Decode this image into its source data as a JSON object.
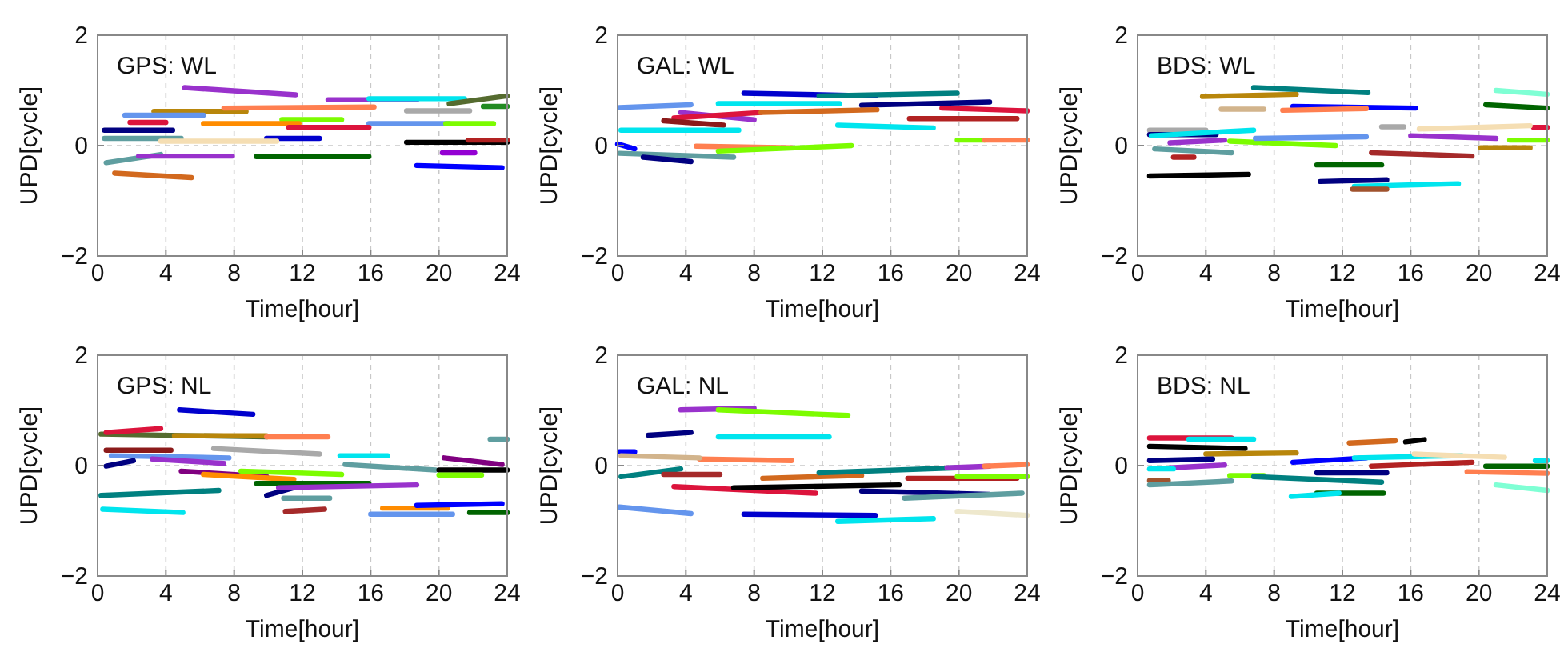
{
  "chart_data": [
    {
      "type": "line",
      "title": "GPS: WL",
      "xlabel": "Time[hour]",
      "ylabel": "UPD[cycle]",
      "xlim": [
        0,
        24
      ],
      "xticks": [
        0,
        4,
        8,
        12,
        16,
        20,
        24
      ],
      "ylim": [
        -2,
        2
      ],
      "yticks": [
        -2,
        0,
        2
      ],
      "grid": true,
      "series": [
        {
          "color": "#9932cc",
          "x": [
            5.1,
            11.6
          ],
          "values": [
            1.05,
            0.92
          ]
        },
        {
          "color": "#b8860b",
          "x": [
            3.3,
            8.7
          ],
          "values": [
            0.62,
            0.62
          ]
        },
        {
          "color": "#ff7f50",
          "x": [
            7.4,
            16.2
          ],
          "values": [
            0.68,
            0.7
          ]
        },
        {
          "color": "#9932cc",
          "x": [
            13.5,
            18.7
          ],
          "values": [
            0.83,
            0.83
          ]
        },
        {
          "color": "#00e5ee",
          "x": [
            15.9,
            21.5
          ],
          "values": [
            0.85,
            0.85
          ]
        },
        {
          "color": "#556b2f",
          "x": [
            20.6,
            24
          ],
          "values": [
            0.76,
            0.9
          ]
        },
        {
          "color": "#a9a9a9",
          "x": [
            18.1,
            21.8
          ],
          "values": [
            0.63,
            0.63
          ]
        },
        {
          "color": "#228b22",
          "x": [
            22.6,
            24
          ],
          "values": [
            0.71,
            0.71
          ]
        },
        {
          "color": "#6495ed",
          "x": [
            1.6,
            6.2
          ],
          "values": [
            0.55,
            0.55
          ]
        },
        {
          "color": "#dc143c",
          "x": [
            1.9,
            4
          ],
          "values": [
            0.42,
            0.42
          ]
        },
        {
          "color": "#7cfc00",
          "x": [
            10.8,
            14.3
          ],
          "values": [
            0.47,
            0.47
          ]
        },
        {
          "color": "#ff8c00",
          "x": [
            6.2,
            11.8
          ],
          "values": [
            0.4,
            0.4
          ]
        },
        {
          "color": "#6495ed",
          "x": [
            15.9,
            20.6
          ],
          "values": [
            0.4,
            0.4
          ]
        },
        {
          "color": "#7cfc00",
          "x": [
            20.4,
            23.2
          ],
          "values": [
            0.4,
            0.4
          ]
        },
        {
          "color": "#000080",
          "x": [
            0.4,
            4.4
          ],
          "values": [
            0.28,
            0.28
          ]
        },
        {
          "color": "#dc143c",
          "x": [
            11.2,
            15.9
          ],
          "values": [
            0.33,
            0.33
          ]
        },
        {
          "color": "#5f9ea0",
          "x": [
            0.4,
            4.9
          ],
          "values": [
            0.13,
            0.13
          ]
        },
        {
          "color": "#0000cd",
          "x": [
            9.9,
            13
          ],
          "values": [
            0.13,
            0.13
          ]
        },
        {
          "color": "#f5deb3",
          "x": [
            3.7,
            10.5
          ],
          "values": [
            0.08,
            0.08
          ]
        },
        {
          "color": "#000000",
          "x": [
            18.1,
            24
          ],
          "values": [
            0.06,
            0.06
          ]
        },
        {
          "color": "#b22222",
          "x": [
            21.7,
            24
          ],
          "values": [
            0.1,
            0.1
          ]
        },
        {
          "color": "#5f9ea0",
          "x": [
            0.5,
            3.7
          ],
          "values": [
            -0.31,
            -0.16
          ]
        },
        {
          "color": "#9932cc",
          "x": [
            2.4,
            7.9
          ],
          "values": [
            -0.19,
            -0.19
          ]
        },
        {
          "color": "#006400",
          "x": [
            9.3,
            15.9
          ],
          "values": [
            -0.2,
            -0.2
          ]
        },
        {
          "color": "#d2691e",
          "x": [
            1,
            5.5
          ],
          "values": [
            -0.5,
            -0.58
          ]
        },
        {
          "color": "#0000ff",
          "x": [
            18.7,
            23.7
          ],
          "values": [
            -0.36,
            -0.4
          ]
        },
        {
          "color": "#9400d3",
          "x": [
            20.2,
            22.1
          ],
          "values": [
            -0.13,
            -0.13
          ]
        }
      ]
    },
    {
      "type": "line",
      "title": "GAL: WL",
      "xlabel": "Time[hour]",
      "ylabel": "UPD[cycle]",
      "xlim": [
        0,
        24
      ],
      "xticks": [
        0,
        4,
        8,
        12,
        16,
        20,
        24
      ],
      "ylim": [
        -2,
        2
      ],
      "yticks": [
        -2,
        0,
        2
      ],
      "grid": true,
      "series": [
        {
          "color": "#0000cd",
          "x": [
            7.4,
            15.1
          ],
          "values": [
            0.95,
            0.9
          ]
        },
        {
          "color": "#008080",
          "x": [
            11.8,
            19.9
          ],
          "values": [
            0.9,
            0.95
          ]
        },
        {
          "color": "#6495ed",
          "x": [
            0.1,
            4.3
          ],
          "values": [
            0.69,
            0.74
          ]
        },
        {
          "color": "#00e5ee",
          "x": [
            5.9,
            13
          ],
          "values": [
            0.76,
            0.76
          ]
        },
        {
          "color": "#000080",
          "x": [
            14.3,
            21.8
          ],
          "values": [
            0.73,
            0.79
          ]
        },
        {
          "color": "#9932cc",
          "x": [
            3.7,
            8
          ],
          "values": [
            0.6,
            0.47
          ]
        },
        {
          "color": "#dc143c",
          "x": [
            3.3,
            8.4
          ],
          "values": [
            0.5,
            0.6
          ]
        },
        {
          "color": "#d2691e",
          "x": [
            8.4,
            15.2
          ],
          "values": [
            0.6,
            0.65
          ]
        },
        {
          "color": "#b22222",
          "x": [
            17.1,
            23.4
          ],
          "values": [
            0.49,
            0.49
          ]
        },
        {
          "color": "#8b1a1a",
          "x": [
            2.7,
            6.2
          ],
          "values": [
            0.45,
            0.37
          ]
        },
        {
          "color": "#dc143c",
          "x": [
            19,
            24
          ],
          "values": [
            0.68,
            0.63
          ]
        },
        {
          "color": "#00e5ee",
          "x": [
            0.2,
            7.1
          ],
          "values": [
            0.28,
            0.28
          ]
        },
        {
          "color": "#00e5ee",
          "x": [
            12.9,
            18.5
          ],
          "values": [
            0.37,
            0.32
          ]
        },
        {
          "color": "#ff7f50",
          "x": [
            4.6,
            10.2
          ],
          "values": [
            -0.01,
            -0.04
          ]
        },
        {
          "color": "#7cfc00",
          "x": [
            5.9,
            13.7
          ],
          "values": [
            -0.1,
            0
          ]
        },
        {
          "color": "#7cfc00",
          "x": [
            19.9,
            21.5
          ],
          "values": [
            0.1,
            0.1
          ]
        },
        {
          "color": "#ff7f50",
          "x": [
            21.5,
            24
          ],
          "values": [
            0.1,
            0.1
          ]
        },
        {
          "color": "#0000ff",
          "x": [
            0,
            1
          ],
          "values": [
            0.03,
            -0.06
          ]
        },
        {
          "color": "#5f9ea0",
          "x": [
            0.1,
            6.8
          ],
          "values": [
            -0.14,
            -0.21
          ]
        },
        {
          "color": "#000080",
          "x": [
            1.5,
            4.3
          ],
          "values": [
            -0.21,
            -0.29
          ]
        }
      ]
    },
    {
      "type": "line",
      "title": "BDS: WL",
      "xlabel": "Time[hour]",
      "ylabel": "UPD[cycle]",
      "xlim": [
        0,
        24
      ],
      "xticks": [
        0,
        4,
        8,
        12,
        16,
        20,
        24
      ],
      "ylim": [
        -2,
        2
      ],
      "yticks": [
        -2,
        0,
        2
      ],
      "grid": true,
      "series": [
        {
          "color": "#008080",
          "x": [
            6.8,
            13.5
          ],
          "values": [
            1.05,
            0.96
          ]
        },
        {
          "color": "#b8860b",
          "x": [
            3.8,
            9.3
          ],
          "values": [
            0.89,
            0.93
          ]
        },
        {
          "color": "#d2b48c",
          "x": [
            4.9,
            7.4
          ],
          "values": [
            0.66,
            0.66
          ]
        },
        {
          "color": "#0000ff",
          "x": [
            9.1,
            16.3
          ],
          "values": [
            0.71,
            0.68
          ]
        },
        {
          "color": "#ff7f50",
          "x": [
            8.5,
            13.4
          ],
          "values": [
            0.64,
            0.67
          ]
        },
        {
          "color": "#7fffd4",
          "x": [
            21,
            24
          ],
          "values": [
            1,
            0.93
          ]
        },
        {
          "color": "#006400",
          "x": [
            20.4,
            24
          ],
          "values": [
            0.74,
            0.68
          ]
        },
        {
          "color": "#a9a9a9",
          "x": [
            0.7,
            4
          ],
          "values": [
            0.28,
            0.28
          ]
        },
        {
          "color": "#000080",
          "x": [
            0.7,
            4.6
          ],
          "values": [
            0.2,
            0.2
          ]
        },
        {
          "color": "#00e5ee",
          "x": [
            0.8,
            6.8
          ],
          "values": [
            0.18,
            0.28
          ]
        },
        {
          "color": "#9932cc",
          "x": [
            1.9,
            5.1
          ],
          "values": [
            0.05,
            0.1
          ]
        },
        {
          "color": "#7cfc00",
          "x": [
            5.4,
            11.6
          ],
          "values": [
            0.08,
            0
          ]
        },
        {
          "color": "#6495ed",
          "x": [
            6.9,
            13.4
          ],
          "values": [
            0.13,
            0.16
          ]
        },
        {
          "color": "#5f9ea0",
          "x": [
            1,
            5.5
          ],
          "values": [
            -0.06,
            -0.13
          ]
        },
        {
          "color": "#b22222",
          "x": [
            2.1,
            3.3
          ],
          "values": [
            -0.21,
            -0.21
          ]
        },
        {
          "color": "#000000",
          "x": [
            0.7,
            6.5
          ],
          "values": [
            -0.55,
            -0.52
          ]
        },
        {
          "color": "#006400",
          "x": [
            10.5,
            14.3
          ],
          "values": [
            -0.35,
            -0.35
          ]
        },
        {
          "color": "#000080",
          "x": [
            10.7,
            14.6
          ],
          "values": [
            -0.65,
            -0.62
          ]
        },
        {
          "color": "#00e5ee",
          "x": [
            12.7,
            18.8
          ],
          "values": [
            -0.74,
            -0.69
          ]
        },
        {
          "color": "#a0522d",
          "x": [
            12.6,
            14.6
          ],
          "values": [
            -0.79,
            -0.79
          ]
        },
        {
          "color": "#a9a9a9",
          "x": [
            14.3,
            15.6
          ],
          "values": [
            0.34,
            0.34
          ]
        },
        {
          "color": "#9932cc",
          "x": [
            16,
            21
          ],
          "values": [
            0.18,
            0.13
          ]
        },
        {
          "color": "#a52a2a",
          "x": [
            13.7,
            19.6
          ],
          "values": [
            -0.13,
            -0.19
          ]
        },
        {
          "color": "#b8860b",
          "x": [
            20.1,
            23
          ],
          "values": [
            -0.04,
            -0.04
          ]
        },
        {
          "color": "#dc143c",
          "x": [
            23.2,
            24
          ],
          "values": [
            0.33,
            0.33
          ]
        },
        {
          "color": "#7cfc00",
          "x": [
            21.8,
            24
          ],
          "values": [
            0.1,
            0.1
          ]
        },
        {
          "color": "#f5deb3",
          "x": [
            16.5,
            23
          ],
          "values": [
            0.3,
            0.36
          ]
        }
      ]
    },
    {
      "type": "line",
      "title": "GPS: NL",
      "xlabel": "Time[hour]",
      "ylabel": "UPD[cycle]",
      "xlim": [
        0,
        24
      ],
      "xticks": [
        0,
        4,
        8,
        12,
        16,
        20,
        24
      ],
      "ylim": [
        -2,
        2
      ],
      "yticks": [
        -2,
        0,
        2
      ],
      "grid": true,
      "series": [
        {
          "color": "#0000cd",
          "x": [
            4.8,
            9.1
          ],
          "values": [
            1.01,
            0.93
          ]
        },
        {
          "color": "#556b2f",
          "x": [
            0.2,
            9.9
          ],
          "values": [
            0.57,
            0.52
          ]
        },
        {
          "color": "#b8860b",
          "x": [
            4.5,
            9.9
          ],
          "values": [
            0.54,
            0.54
          ]
        },
        {
          "color": "#ff7f50",
          "x": [
            9.9,
            13.5
          ],
          "values": [
            0.52,
            0.52
          ]
        },
        {
          "color": "#dc143c",
          "x": [
            0.5,
            3.7
          ],
          "values": [
            0.6,
            0.67
          ]
        },
        {
          "color": "#8b1a1a",
          "x": [
            0.5,
            4.3
          ],
          "values": [
            0.28,
            0.28
          ]
        },
        {
          "color": "#a9a9a9",
          "x": [
            6.8,
            13
          ],
          "values": [
            0.31,
            0.21
          ]
        },
        {
          "color": "#6495ed",
          "x": [
            0.8,
            7.7
          ],
          "values": [
            0.18,
            0.14
          ]
        },
        {
          "color": "#000080",
          "x": [
            0.5,
            2.1
          ],
          "values": [
            -0.01,
            0.09
          ]
        },
        {
          "color": "#9932cc",
          "x": [
            3.2,
            7.4
          ],
          "values": [
            0.12,
            0.04
          ]
        },
        {
          "color": "#008080",
          "x": [
            0.2,
            7.1
          ],
          "values": [
            -0.54,
            -0.45
          ]
        },
        {
          "color": "#00e5ee",
          "x": [
            0.3,
            5
          ],
          "values": [
            -0.79,
            -0.85
          ]
        },
        {
          "color": "#800080",
          "x": [
            4.9,
            9.9
          ],
          "values": [
            -0.1,
            -0.2
          ]
        },
        {
          "color": "#ff8c00",
          "x": [
            6.2,
            11.5
          ],
          "values": [
            -0.16,
            -0.25
          ]
        },
        {
          "color": "#7cfc00",
          "x": [
            8.4,
            14.3
          ],
          "values": [
            -0.1,
            -0.16
          ]
        },
        {
          "color": "#006400",
          "x": [
            9.3,
            15.9
          ],
          "values": [
            -0.32,
            -0.32
          ]
        },
        {
          "color": "#000080",
          "x": [
            9.9,
            11.5
          ],
          "values": [
            -0.54,
            -0.4
          ]
        },
        {
          "color": "#9932cc",
          "x": [
            10.6,
            18.7
          ],
          "values": [
            -0.4,
            -0.35
          ]
        },
        {
          "color": "#a52a2a",
          "x": [
            11,
            13.3
          ],
          "values": [
            -0.83,
            -0.79
          ]
        },
        {
          "color": "#5f9ea0",
          "x": [
            10.9,
            13.6
          ],
          "values": [
            -0.59,
            -0.59
          ]
        },
        {
          "color": "#00e5ee",
          "x": [
            14.2,
            17
          ],
          "values": [
            0.18,
            0.18
          ]
        },
        {
          "color": "#5f9ea0",
          "x": [
            14.5,
            19.8
          ],
          "values": [
            0.02,
            -0.08
          ]
        },
        {
          "color": "#000000",
          "x": [
            20,
            24
          ],
          "values": [
            -0.08,
            -0.08
          ]
        },
        {
          "color": "#7cfc00",
          "x": [
            20,
            22.5
          ],
          "values": [
            -0.17,
            -0.17
          ]
        },
        {
          "color": "#800080",
          "x": [
            20.3,
            23.7
          ],
          "values": [
            0.14,
            0.02
          ]
        },
        {
          "color": "#6495ed",
          "x": [
            16,
            20.8
          ],
          "values": [
            -0.88,
            -0.88
          ]
        },
        {
          "color": "#ff8c00",
          "x": [
            16.7,
            20.5
          ],
          "values": [
            -0.77,
            -0.77
          ]
        },
        {
          "color": "#0000ff",
          "x": [
            18.7,
            23.7
          ],
          "values": [
            -0.72,
            -0.69
          ]
        },
        {
          "color": "#006400",
          "x": [
            21.8,
            24
          ],
          "values": [
            -0.85,
            -0.85
          ]
        },
        {
          "color": "#5f9ea0",
          "x": [
            23,
            24
          ],
          "values": [
            0.48,
            0.48
          ]
        }
      ]
    },
    {
      "type": "line",
      "title": "GAL: NL",
      "xlabel": "Time[hour]",
      "ylabel": "UPD[cycle]",
      "xlim": [
        0,
        24
      ],
      "xticks": [
        0,
        4,
        8,
        12,
        16,
        20,
        24
      ],
      "ylim": [
        -2,
        2
      ],
      "yticks": [
        -2,
        0,
        2
      ],
      "grid": true,
      "series": [
        {
          "color": "#9932cc",
          "x": [
            3.7,
            8
          ],
          "values": [
            1.01,
            1.04
          ]
        },
        {
          "color": "#7cfc00",
          "x": [
            5.9,
            13.5
          ],
          "values": [
            1.01,
            0.91
          ]
        },
        {
          "color": "#000080",
          "x": [
            1.8,
            4.3
          ],
          "values": [
            0.55,
            0.6
          ]
        },
        {
          "color": "#00e5ee",
          "x": [
            5.9,
            12.4
          ],
          "values": [
            0.52,
            0.52
          ]
        },
        {
          "color": "#0000ff",
          "x": [
            0.1,
            1
          ],
          "values": [
            0.25,
            0.25
          ]
        },
        {
          "color": "#ff7f50",
          "x": [
            4.8,
            10.2
          ],
          "values": [
            0.12,
            0.09
          ]
        },
        {
          "color": "#d2b48c",
          "x": [
            0.2,
            4.8
          ],
          "values": [
            0.18,
            0.14
          ]
        },
        {
          "color": "#008080",
          "x": [
            0.2,
            3.7
          ],
          "values": [
            -0.2,
            -0.06
          ]
        },
        {
          "color": "#a52a2a",
          "x": [
            2.7,
            6
          ],
          "values": [
            -0.16,
            -0.16
          ]
        },
        {
          "color": "#dc143c",
          "x": [
            3.3,
            11.6
          ],
          "values": [
            -0.38,
            -0.5
          ]
        },
        {
          "color": "#000000",
          "x": [
            6.8,
            16.5
          ],
          "values": [
            -0.4,
            -0.35
          ]
        },
        {
          "color": "#d2691e",
          "x": [
            8.5,
            14.3
          ],
          "values": [
            -0.23,
            -0.18
          ]
        },
        {
          "color": "#008080",
          "x": [
            11.8,
            19.9
          ],
          "values": [
            -0.13,
            -0.04
          ]
        },
        {
          "color": "#6495ed",
          "x": [
            0.1,
            4.3
          ],
          "values": [
            -0.75,
            -0.87
          ]
        },
        {
          "color": "#0000cd",
          "x": [
            7.4,
            15.1
          ],
          "values": [
            -0.88,
            -0.9
          ]
        },
        {
          "color": "#00e5ee",
          "x": [
            12.9,
            18.5
          ],
          "values": [
            -1.01,
            -0.96
          ]
        },
        {
          "color": "#000080",
          "x": [
            14.3,
            21.8
          ],
          "values": [
            -0.46,
            -0.52
          ]
        },
        {
          "color": "#b22222",
          "x": [
            17,
            23.4
          ],
          "values": [
            -0.23,
            -0.23
          ]
        },
        {
          "color": "#9932cc",
          "x": [
            19.3,
            21.8
          ],
          "values": [
            -0.04,
            -0.01
          ]
        },
        {
          "color": "#ff7f50",
          "x": [
            21.5,
            24
          ],
          "values": [
            -0.01,
            0.02
          ]
        },
        {
          "color": "#7cfc00",
          "x": [
            19.9,
            24
          ],
          "values": [
            -0.2,
            -0.2
          ]
        },
        {
          "color": "#5f9ea0",
          "x": [
            16.8,
            23.7
          ],
          "values": [
            -0.59,
            -0.5
          ]
        },
        {
          "color": "#eee8cd",
          "x": [
            19.9,
            24
          ],
          "values": [
            -0.83,
            -0.9
          ]
        }
      ]
    },
    {
      "type": "line",
      "title": "BDS: NL",
      "xlabel": "Time[hour]",
      "ylabel": "UPD[cycle]",
      "xlim": [
        0,
        24
      ],
      "xticks": [
        0,
        4,
        8,
        12,
        16,
        20,
        24
      ],
      "ylim": [
        -2,
        2
      ],
      "yticks": [
        -2,
        0,
        2
      ],
      "grid": true,
      "series": [
        {
          "color": "#dc143c",
          "x": [
            0.7,
            5.5
          ],
          "values": [
            0.5,
            0.5
          ]
        },
        {
          "color": "#00e5ee",
          "x": [
            3,
            6.8
          ],
          "values": [
            0.48,
            0.48
          ]
        },
        {
          "color": "#000000",
          "x": [
            0.7,
            6.3
          ],
          "values": [
            0.35,
            0.31
          ]
        },
        {
          "color": "#b8860b",
          "x": [
            4,
            9.3
          ],
          "values": [
            0.21,
            0.23
          ]
        },
        {
          "color": "#d2691e",
          "x": [
            12.4,
            15.1
          ],
          "values": [
            0.41,
            0.45
          ]
        },
        {
          "color": "#000000",
          "x": [
            15.7,
            16.8
          ],
          "values": [
            0.43,
            0.47
          ]
        },
        {
          "color": "#000080",
          "x": [
            0.7,
            4.4
          ],
          "values": [
            0.09,
            0.12
          ]
        },
        {
          "color": "#9932cc",
          "x": [
            1.9,
            5.1
          ],
          "values": [
            -0.04,
            0.01
          ]
        },
        {
          "color": "#00e5ee",
          "x": [
            0.7,
            2.1
          ],
          "values": [
            -0.06,
            -0.06
          ]
        },
        {
          "color": "#a0522d",
          "x": [
            0.7,
            1.8
          ],
          "values": [
            -0.27,
            -0.27
          ]
        },
        {
          "color": "#5f9ea0",
          "x": [
            0.7,
            5.5
          ],
          "values": [
            -0.35,
            -0.28
          ]
        },
        {
          "color": "#7cfc00",
          "x": [
            5.4,
            7.4
          ],
          "values": [
            -0.18,
            -0.18
          ]
        },
        {
          "color": "#008080",
          "x": [
            6.8,
            14.3
          ],
          "values": [
            -0.2,
            -0.3
          ]
        },
        {
          "color": "#0000ff",
          "x": [
            9.1,
            13.4
          ],
          "values": [
            0.06,
            0.14
          ]
        },
        {
          "color": "#000080",
          "x": [
            10.5,
            14.6
          ],
          "values": [
            -0.13,
            -0.13
          ]
        },
        {
          "color": "#006400",
          "x": [
            10.5,
            14.4
          ],
          "values": [
            -0.5,
            -0.5
          ]
        },
        {
          "color": "#00e5ee",
          "x": [
            9,
            11.8
          ],
          "values": [
            -0.56,
            -0.5
          ]
        },
        {
          "color": "#00e5ee",
          "x": [
            12.7,
            19
          ],
          "values": [
            0.14,
            0.18
          ]
        },
        {
          "color": "#b22222",
          "x": [
            13.7,
            19.6
          ],
          "values": [
            -0.01,
            0.06
          ]
        },
        {
          "color": "#006400",
          "x": [
            20.4,
            24
          ],
          "values": [
            -0.01,
            -0.01
          ]
        },
        {
          "color": "#ff7f50",
          "x": [
            19.3,
            24
          ],
          "values": [
            -0.11,
            -0.14
          ]
        },
        {
          "color": "#7fffd4",
          "x": [
            21,
            24
          ],
          "values": [
            -0.35,
            -0.45
          ]
        },
        {
          "color": "#00e5ee",
          "x": [
            23.3,
            24
          ],
          "values": [
            0.09,
            0.09
          ]
        },
        {
          "color": "#f5deb3",
          "x": [
            16.2,
            21.5
          ],
          "values": [
            0.21,
            0.15
          ]
        }
      ]
    }
  ]
}
